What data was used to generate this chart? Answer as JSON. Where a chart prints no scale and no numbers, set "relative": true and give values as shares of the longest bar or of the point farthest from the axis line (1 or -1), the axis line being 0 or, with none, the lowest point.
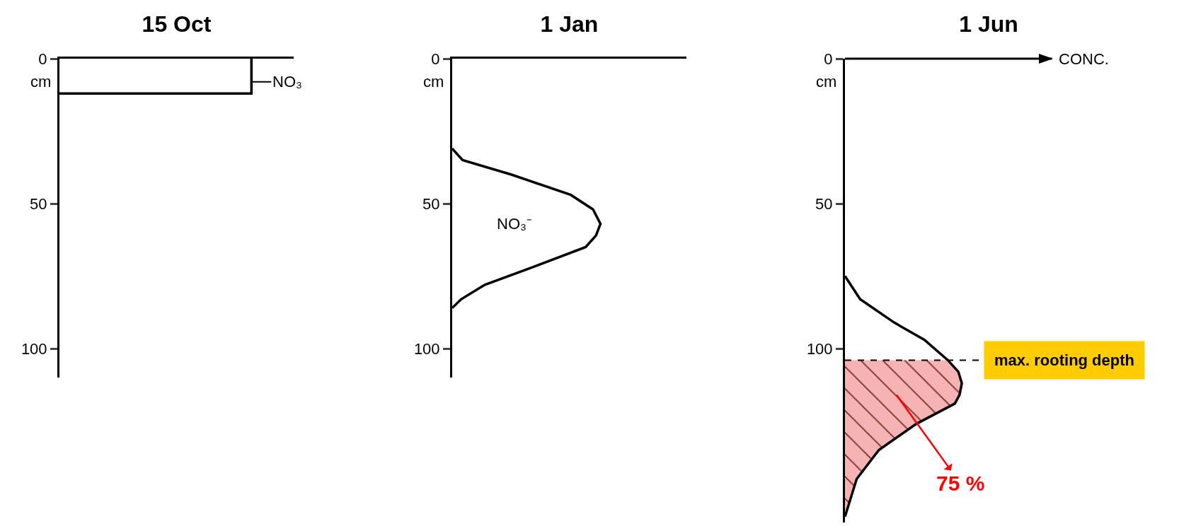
{
  "chart_data": [
    {
      "type": "line",
      "title": "15 Oct",
      "ylabel": "cm",
      "orientation": "horizontal",
      "relative": true,
      "ylim": [
        110,
        0
      ],
      "yticks": [
        0,
        50,
        100
      ],
      "tick_labels": "y",
      "grid": false,
      "legend": "top right",
      "series": [
        {
          "name": "NO₃",
          "color": "#000000",
          "x": [
            12,
            12,
            0
          ],
          "values": [
            0,
            1,
            1
          ]
        }
      ]
    },
    {
      "type": "line",
      "title": "1 Jan",
      "ylabel": "cm",
      "orientation": "horizontal",
      "relative": true,
      "ylim": [
        110,
        0
      ],
      "yticks": [
        0,
        50,
        100
      ],
      "tick_labels": "y",
      "grid": false,
      "series": [
        {
          "name": "NO₃⁻",
          "color": "#000000",
          "x": [
            31,
            35,
            40,
            47,
            52,
            57,
            61,
            65,
            72,
            78,
            83,
            86
          ],
          "values": [
            0,
            0.07,
            0.4,
            0.8,
            0.95,
            1,
            0.97,
            0.9,
            0.54,
            0.22,
            0.06,
            0
          ]
        }
      ]
    },
    {
      "type": "line",
      "title": "1 Jun",
      "ylabel": "cm",
      "orientation": "horizontal",
      "relative": true,
      "ylim": [
        160,
        0
      ],
      "yticks": [
        0,
        50,
        100
      ],
      "tick_labels": "y",
      "grid": false,
      "series": [
        {
          "color": "#000000",
          "x": [
            75,
            83,
            91,
            97,
            104,
            108,
            112,
            116,
            119,
            126,
            135,
            145,
            158
          ],
          "values": [
            0,
            0.13,
            0.42,
            0.68,
            0.88,
            0.97,
            1,
            0.98,
            0.94,
            0.61,
            0.29,
            0.1,
            0
          ]
        },
        {
          "type": "area",
          "color": "#f08080",
          "x": [
            104,
            108,
            112,
            116,
            119,
            126,
            135,
            145,
            158
          ],
          "values": [
            0.88,
            0.97,
            1,
            0.98,
            0.94,
            0.61,
            0.29,
            0.1,
            0
          ]
        }
      ],
      "ref_lines": [
        {
          "axis": "y",
          "value": 104,
          "label": "max. rooting depth",
          "line_style": "dashed",
          "color": "#000000"
        }
      ],
      "annotations": [
        "CONC.",
        "75 %"
      ]
    }
  ]
}
